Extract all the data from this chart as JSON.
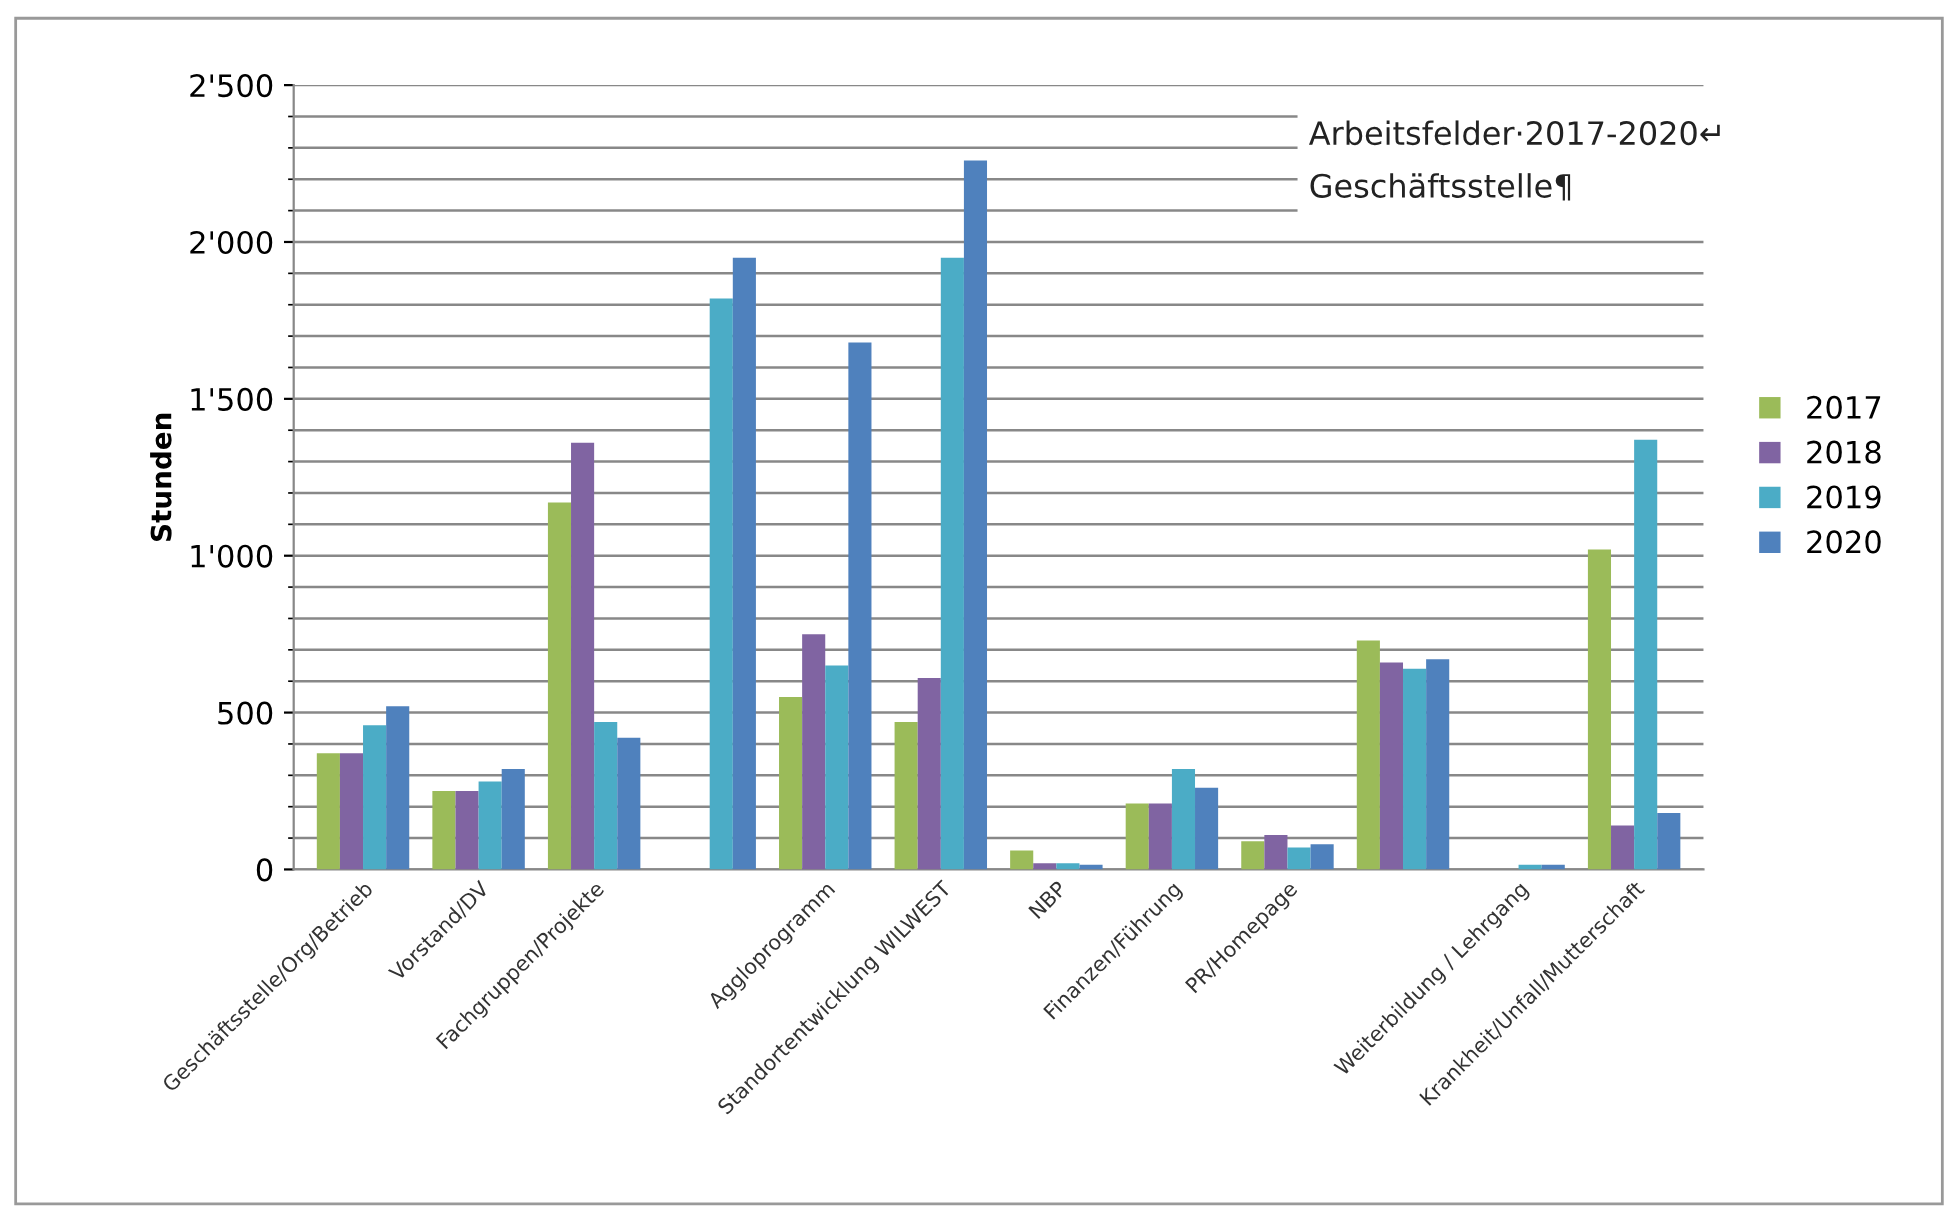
{
  "chart_data": {
    "type": "bar",
    "ylabel": "Stunden",
    "annotations": [
      "Arbeitsfelder·2017-2020↵",
      "Geschäftsstelle¶"
    ],
    "categories": [
      "Geschäftsstelle/Org/Betrieb",
      "Vorstand/DV",
      "Fachgruppen/Projekte",
      null,
      "Aggloprogramm",
      "Standortentwicklung WILWEST",
      "NBP",
      "Finanzen/Führung",
      "PR/Homepage",
      null,
      "Weiterbildung / Lehrgang",
      "Krankheit/Unfall/Mutterschaft"
    ],
    "series": [
      {
        "name": "2017",
        "color": "#9bbb59",
        "values": [
          370,
          250,
          1170,
          0,
          550,
          470,
          60,
          210,
          90,
          730,
          null,
          1020
        ]
      },
      {
        "name": "2018",
        "color": "#8064a2",
        "values": [
          370,
          250,
          1360,
          0,
          750,
          610,
          20,
          210,
          110,
          660,
          null,
          140
        ]
      },
      {
        "name": "2019",
        "color": "#4bacc6",
        "values": [
          460,
          280,
          470,
          1820,
          650,
          1950,
          20,
          320,
          70,
          640,
          15,
          1370
        ]
      },
      {
        "name": "2020",
        "color": "#4f81bd",
        "values": [
          520,
          320,
          420,
          1950,
          1680,
          2260,
          15,
          260,
          80,
          670,
          15,
          180
        ]
      }
    ],
    "ylim": [
      0,
      2500
    ],
    "yticks": [
      0,
      500,
      {
        "value": 1000,
        "label": "1'000"
      },
      {
        "value": 1500,
        "label": "1'500"
      },
      {
        "value": 2000,
        "label": "2'000"
      },
      {
        "value": 2500,
        "label": "2'500"
      }
    ],
    "grid": "y",
    "legend": "right"
  }
}
